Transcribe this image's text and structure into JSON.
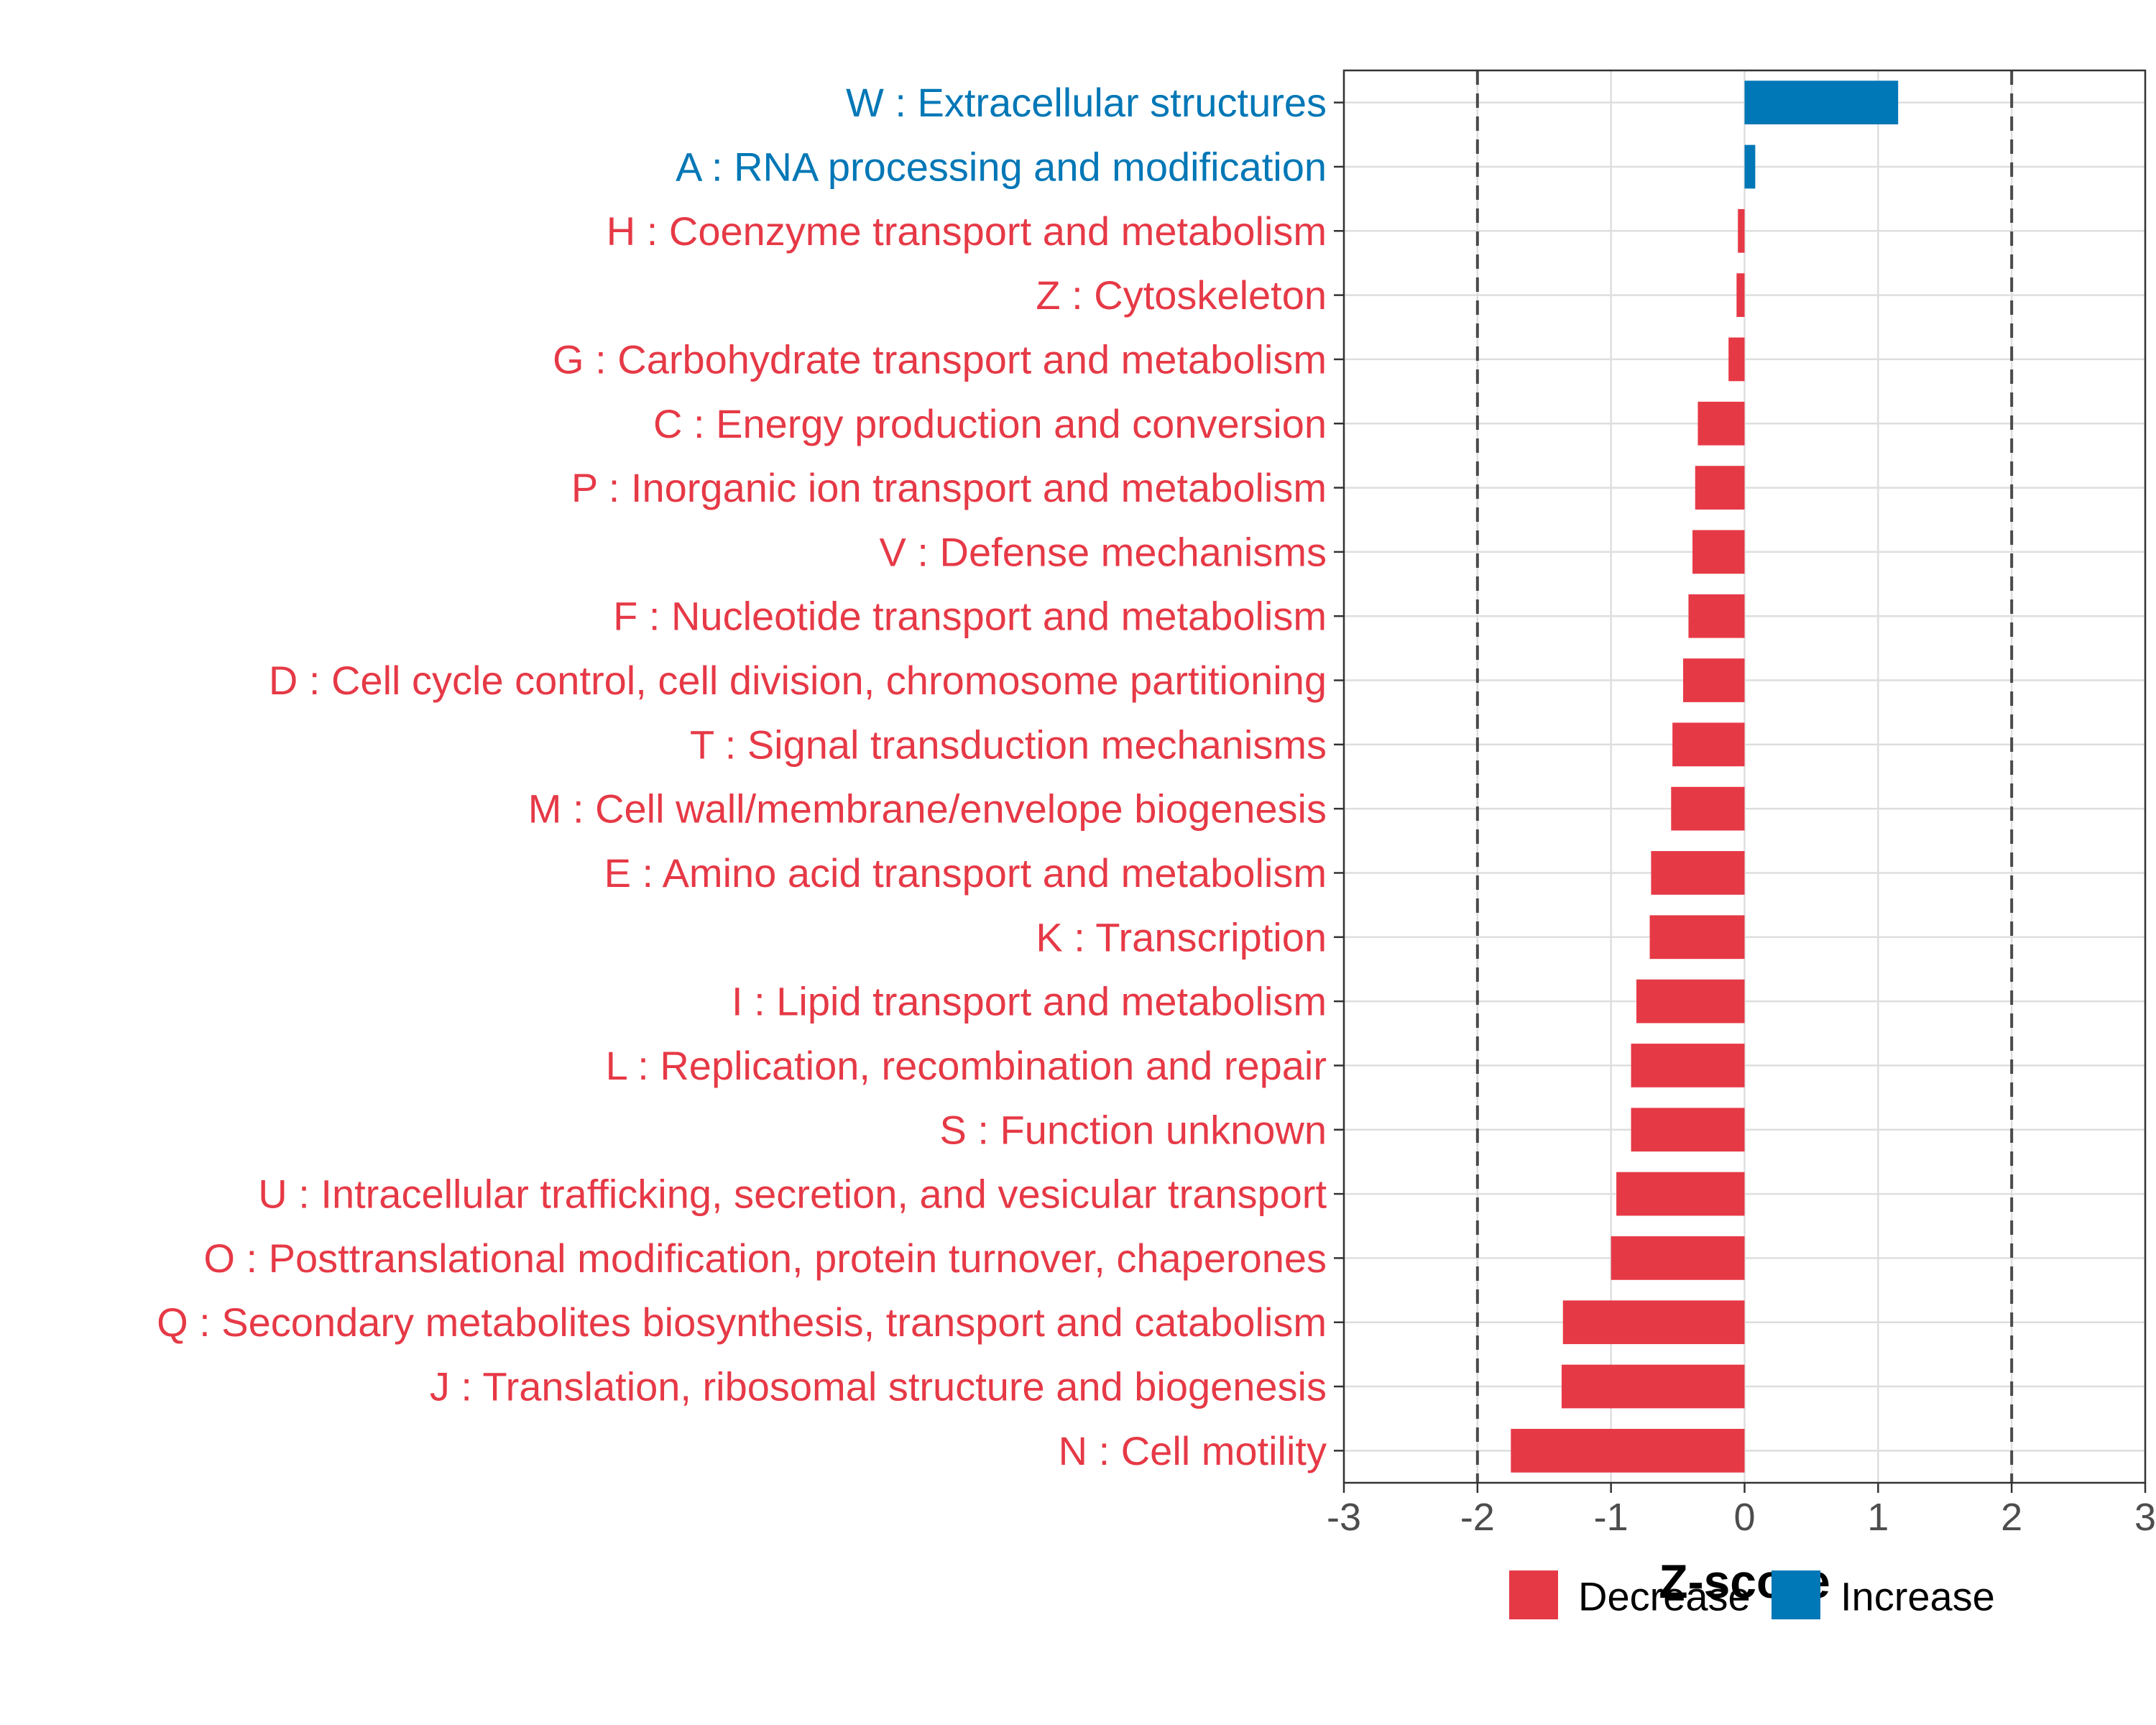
{
  "chart_data": {
    "type": "bar",
    "orientation": "horizontal",
    "xlabel": "Z-score",
    "xlim": [
      -3,
      3
    ],
    "xticks": [
      -3,
      -2,
      -1,
      0,
      1,
      2,
      3
    ],
    "xtick_labels": [
      "-3",
      "-2",
      "-1",
      "0",
      "1",
      "2",
      "3"
    ],
    "reference_lines": [
      -2,
      2
    ],
    "grid": true,
    "legend_position": "bottom",
    "colors": {
      "Decrease": "#e63946",
      "Increase": "#0077b6"
    },
    "legend": [
      {
        "label": "Decrease",
        "color": "#e63946"
      },
      {
        "label": "Increase",
        "color": "#0077b6"
      }
    ],
    "categories": [
      "W : Extracellular structures",
      "A : RNA processing and modification",
      "H : Coenzyme transport and metabolism",
      "Z : Cytoskeleton",
      "G : Carbohydrate transport and metabolism",
      "C : Energy production and conversion",
      "P : Inorganic ion transport and metabolism",
      "V : Defense mechanisms",
      "F : Nucleotide transport and metabolism",
      "D : Cell cycle control, cell division, chromosome partitioning",
      "T : Signal transduction mechanisms",
      "M : Cell wall/membrane/envelope biogenesis",
      "E : Amino acid transport and metabolism",
      "K : Transcription",
      "I : Lipid transport and metabolism",
      "L : Replication, recombination and repair",
      "S : Function unknown",
      "U : Intracellular trafficking, secretion, and vesicular transport",
      "O : Posttranslational modification, protein turnover, chaperones",
      "Q : Secondary metabolites biosynthesis, transport and catabolism",
      "J : Translation, ribosomal structure and biogenesis",
      "N : Cell motility"
    ],
    "values": [
      1.15,
      0.08,
      -0.05,
      -0.06,
      -0.12,
      -0.35,
      -0.37,
      -0.39,
      -0.42,
      -0.46,
      -0.54,
      -0.55,
      -0.7,
      -0.71,
      -0.81,
      -0.85,
      -0.85,
      -0.96,
      -1.0,
      -1.36,
      -1.37,
      -1.75
    ],
    "groups": [
      "Increase",
      "Increase",
      "Decrease",
      "Decrease",
      "Decrease",
      "Decrease",
      "Decrease",
      "Decrease",
      "Decrease",
      "Decrease",
      "Decrease",
      "Decrease",
      "Decrease",
      "Decrease",
      "Decrease",
      "Decrease",
      "Decrease",
      "Decrease",
      "Decrease",
      "Decrease",
      "Decrease",
      "Decrease"
    ]
  }
}
